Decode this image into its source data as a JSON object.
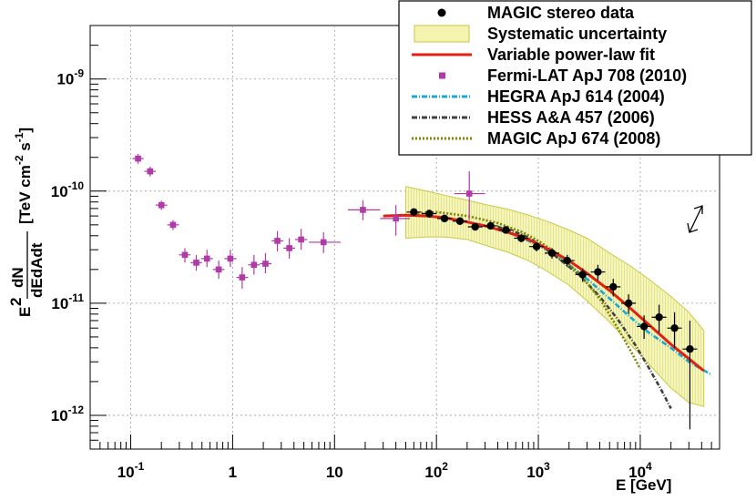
{
  "chart_data": {
    "type": "scatter",
    "title": "",
    "xlabel": "E [GeV]",
    "ylabel": {
      "e2": "E",
      "e2_exp": "2",
      "frac_num": "dN",
      "frac_den": "dEdAdt",
      "units": "[TeV cm",
      "units_exp1": "-2",
      "units_mid": " s",
      "units_exp2": "-1",
      "units_end": "]"
    },
    "xscale": "log",
    "yscale": "log",
    "xlim": [
      0.04,
      60000
    ],
    "ylim": [
      5e-13,
      3e-09
    ],
    "x_ticks": [
      {
        "value": 0.1,
        "base": "10",
        "exp": "-1"
      },
      {
        "value": 1,
        "base": "1",
        "exp": ""
      },
      {
        "value": 10,
        "base": "10",
        "exp": ""
      },
      {
        "value": 100,
        "base": "10",
        "exp": "2"
      },
      {
        "value": 1000,
        "base": "10",
        "exp": "3"
      },
      {
        "value": 10000,
        "base": "10",
        "exp": "4"
      }
    ],
    "y_ticks": [
      {
        "value": 1e-12,
        "base": "10",
        "exp": "-12"
      },
      {
        "value": 1e-11,
        "base": "10",
        "exp": "-11"
      },
      {
        "value": 1e-10,
        "base": "10",
        "exp": "-10"
      },
      {
        "value": 1e-09,
        "base": "10",
        "exp": "-9"
      }
    ],
    "grid": true,
    "legend_position": "top-right",
    "legend": [
      {
        "label": "MAGIC stereo data",
        "kind": "marker-circle",
        "color": "#000000"
      },
      {
        "label": "Systematic uncertainty",
        "kind": "band",
        "color": "#f2f2a0",
        "border": "#c8c840"
      },
      {
        "label": "Variable power-law fit",
        "kind": "line",
        "color": "#e02010"
      },
      {
        "label": "Fermi-LAT ApJ 708 (2010)",
        "kind": "marker-square",
        "color": "#b03aa8"
      },
      {
        "label": "HEGRA ApJ 614 (2004)",
        "kind": "dashdot",
        "color": "#18a8d8"
      },
      {
        "label": "HESS  A&A 457 (2006)",
        "kind": "dashdot",
        "color": "#404040"
      },
      {
        "label": "MAGIC ApJ 674 (2008)",
        "kind": "dotted",
        "color": "#808000"
      }
    ],
    "series": [
      {
        "name": "MAGIC stereo data",
        "color": "#000000",
        "x": [
          60,
          85,
          120,
          170,
          240,
          340,
          480,
          680,
          960,
          1360,
          1920,
          2720,
          3840,
          5430,
          7680,
          10900,
          15300,
          21700,
          30700
        ],
        "y": [
          6.5e-11,
          6.3e-11,
          5.7e-11,
          5.4e-11,
          4.8e-11,
          4.9e-11,
          4.5e-11,
          3.8e-11,
          3.2e-11,
          2.8e-11,
          2.4e-11,
          1.8e-11,
          1.9e-11,
          1.4e-11,
          1e-11,
          6.2e-12,
          7.5e-12,
          6e-12,
          3.9e-12
        ],
        "yerr_lo": [
          6e-11,
          5.8e-11,
          5.3e-11,
          5e-11,
          4.5e-11,
          4.6e-11,
          4.2e-11,
          3.5e-11,
          2.9e-11,
          2.5e-11,
          2.1e-11,
          1.55e-11,
          1.6e-11,
          1.15e-11,
          8e-12,
          4.8e-12,
          5.5e-12,
          4e-12,
          7.5e-13
        ],
        "yerr_hi": [
          7e-11,
          6.8e-11,
          6.1e-11,
          5.8e-11,
          5.1e-11,
          5.2e-11,
          4.8e-11,
          4.1e-11,
          3.5e-11,
          3.1e-11,
          2.7e-11,
          2.05e-11,
          2.2e-11,
          1.65e-11,
          1.2e-11,
          7.8e-12,
          9.7e-12,
          8.3e-12,
          7e-12
        ]
      },
      {
        "name": "Fermi-LAT ApJ 708 (2010)",
        "color": "#b03aa8",
        "x": [
          0.118,
          0.155,
          0.2,
          0.26,
          0.34,
          0.44,
          0.56,
          0.73,
          0.95,
          1.24,
          1.62,
          2.1,
          2.75,
          3.6,
          4.7,
          7.8,
          19,
          40,
          210
        ],
        "y": [
          1.95e-10,
          1.5e-10,
          7.5e-11,
          5e-11,
          2.7e-11,
          2.3e-11,
          2.5e-11,
          2e-11,
          2.5e-11,
          1.7e-11,
          2.2e-11,
          2.25e-11,
          3.6e-11,
          3.1e-11,
          3.7e-11,
          3.5e-11,
          6.8e-11,
          5.7e-11,
          9.5e-11
        ],
        "xerr_lo": [
          0.104,
          0.136,
          0.176,
          0.228,
          0.298,
          0.386,
          0.49,
          0.64,
          0.83,
          1.09,
          1.42,
          1.85,
          2.41,
          3.15,
          4.1,
          5.6,
          13.5,
          28,
          150
        ],
        "xerr_hi": [
          0.134,
          0.176,
          0.228,
          0.298,
          0.386,
          0.5,
          0.64,
          0.83,
          1.09,
          1.42,
          1.85,
          2.41,
          3.15,
          4.1,
          5.4,
          11.5,
          28,
          55,
          300
        ],
        "yerr_lo": [
          1.75e-10,
          1.35e-10,
          6.8e-11,
          4.5e-11,
          2.3e-11,
          1.95e-11,
          2.1e-11,
          1.65e-11,
          2.1e-11,
          1.35e-11,
          1.8e-11,
          1.85e-11,
          2.9e-11,
          2.5e-11,
          3e-11,
          2.8e-11,
          5.5e-11,
          4e-11,
          5.5e-11
        ],
        "yerr_hi": [
          2.15e-10,
          1.65e-10,
          8.2e-11,
          5.5e-11,
          3.1e-11,
          2.7e-11,
          3e-11,
          2.4e-11,
          3e-11,
          2.1e-11,
          2.7e-11,
          2.8e-11,
          4.4e-11,
          3.8e-11,
          4.6e-11,
          4.3e-11,
          8.3e-11,
          7.5e-11,
          1.5e-10
        ]
      }
    ],
    "fit": {
      "name": "Variable power-law fit",
      "color": "#e02010",
      "x": [
        30,
        50,
        80,
        120,
        200,
        300,
        500,
        800,
        1200,
        2000,
        3000,
        5000,
        8000,
        12000,
        20000,
        30000,
        42000
      ],
      "y": [
        6e-11,
        6.1e-11,
        6e-11,
        5.8e-11,
        5.3e-11,
        4.9e-11,
        4.3e-11,
        3.7e-11,
        3.1e-11,
        2.4e-11,
        1.85e-11,
        1.3e-11,
        9e-12,
        6.5e-12,
        4.3e-12,
        3.2e-12,
        2.5e-12
      ]
    },
    "sys_band": {
      "name": "Systematic uncertainty",
      "x": [
        50,
        80,
        120,
        200,
        300,
        500,
        800,
        1200,
        2000,
        3000,
        5000,
        8000,
        12000,
        20000,
        30000,
        42000
      ],
      "lo": [
        3.8e-11,
        3.9e-11,
        3.9e-11,
        3.7e-11,
        3.3e-11,
        2.85e-11,
        2.4e-11,
        1.95e-11,
        1.45e-11,
        1.05e-11,
        6.8e-12,
        4.3e-12,
        2.9e-12,
        1.75e-12,
        1.3e-12,
        1.2e-12
      ],
      "hi": [
        1.1e-10,
        1e-10,
        9.2e-11,
        8.3e-11,
        7.6e-11,
        6.9e-11,
        6.1e-11,
        5.4e-11,
        4.5e-11,
        3.8e-11,
        2.8e-11,
        2.15e-11,
        1.65e-11,
        1.15e-11,
        8.3e-12,
        5.7e-12
      ]
    },
    "reference_curves": [
      {
        "name": "HEGRA ApJ 614 (2004)",
        "color": "#18a8d8",
        "x": [
          500,
          800,
          1200,
          2000,
          3000,
          5000,
          8000,
          12000,
          20000,
          30000,
          50000
        ],
        "y": [
          4.3e-11,
          3.6e-11,
          3e-11,
          2.2e-11,
          1.65e-11,
          1.1e-11,
          7.5e-12,
          5.5e-12,
          4e-12,
          3e-12,
          2.3e-12
        ]
      },
      {
        "name": "HESS  A&A 457 (2006)",
        "color": "#404040",
        "x": [
          400,
          700,
          1000,
          1500,
          2500,
          4000,
          6000,
          9000,
          12000,
          16000,
          20000
        ],
        "y": [
          4.8e-11,
          4.1e-11,
          3.4e-11,
          2.6e-11,
          1.8e-11,
          1.15e-11,
          7.2e-12,
          4.2e-12,
          2.7e-12,
          1.7e-12,
          1.15e-12
        ]
      },
      {
        "name": "MAGIC ApJ 674 (2008)",
        "color": "#808000",
        "x": [
          60,
          100,
          200,
          400,
          700,
          1000,
          1500,
          2500,
          4000,
          6000,
          8000,
          10000
        ],
        "y": [
          6.3e-11,
          6.5e-11,
          6e-11,
          5.2e-11,
          4.3e-11,
          3.6e-11,
          2.8e-11,
          1.85e-11,
          1.1e-11,
          6e-12,
          3.8e-12,
          2.6e-12
        ]
      }
    ]
  }
}
